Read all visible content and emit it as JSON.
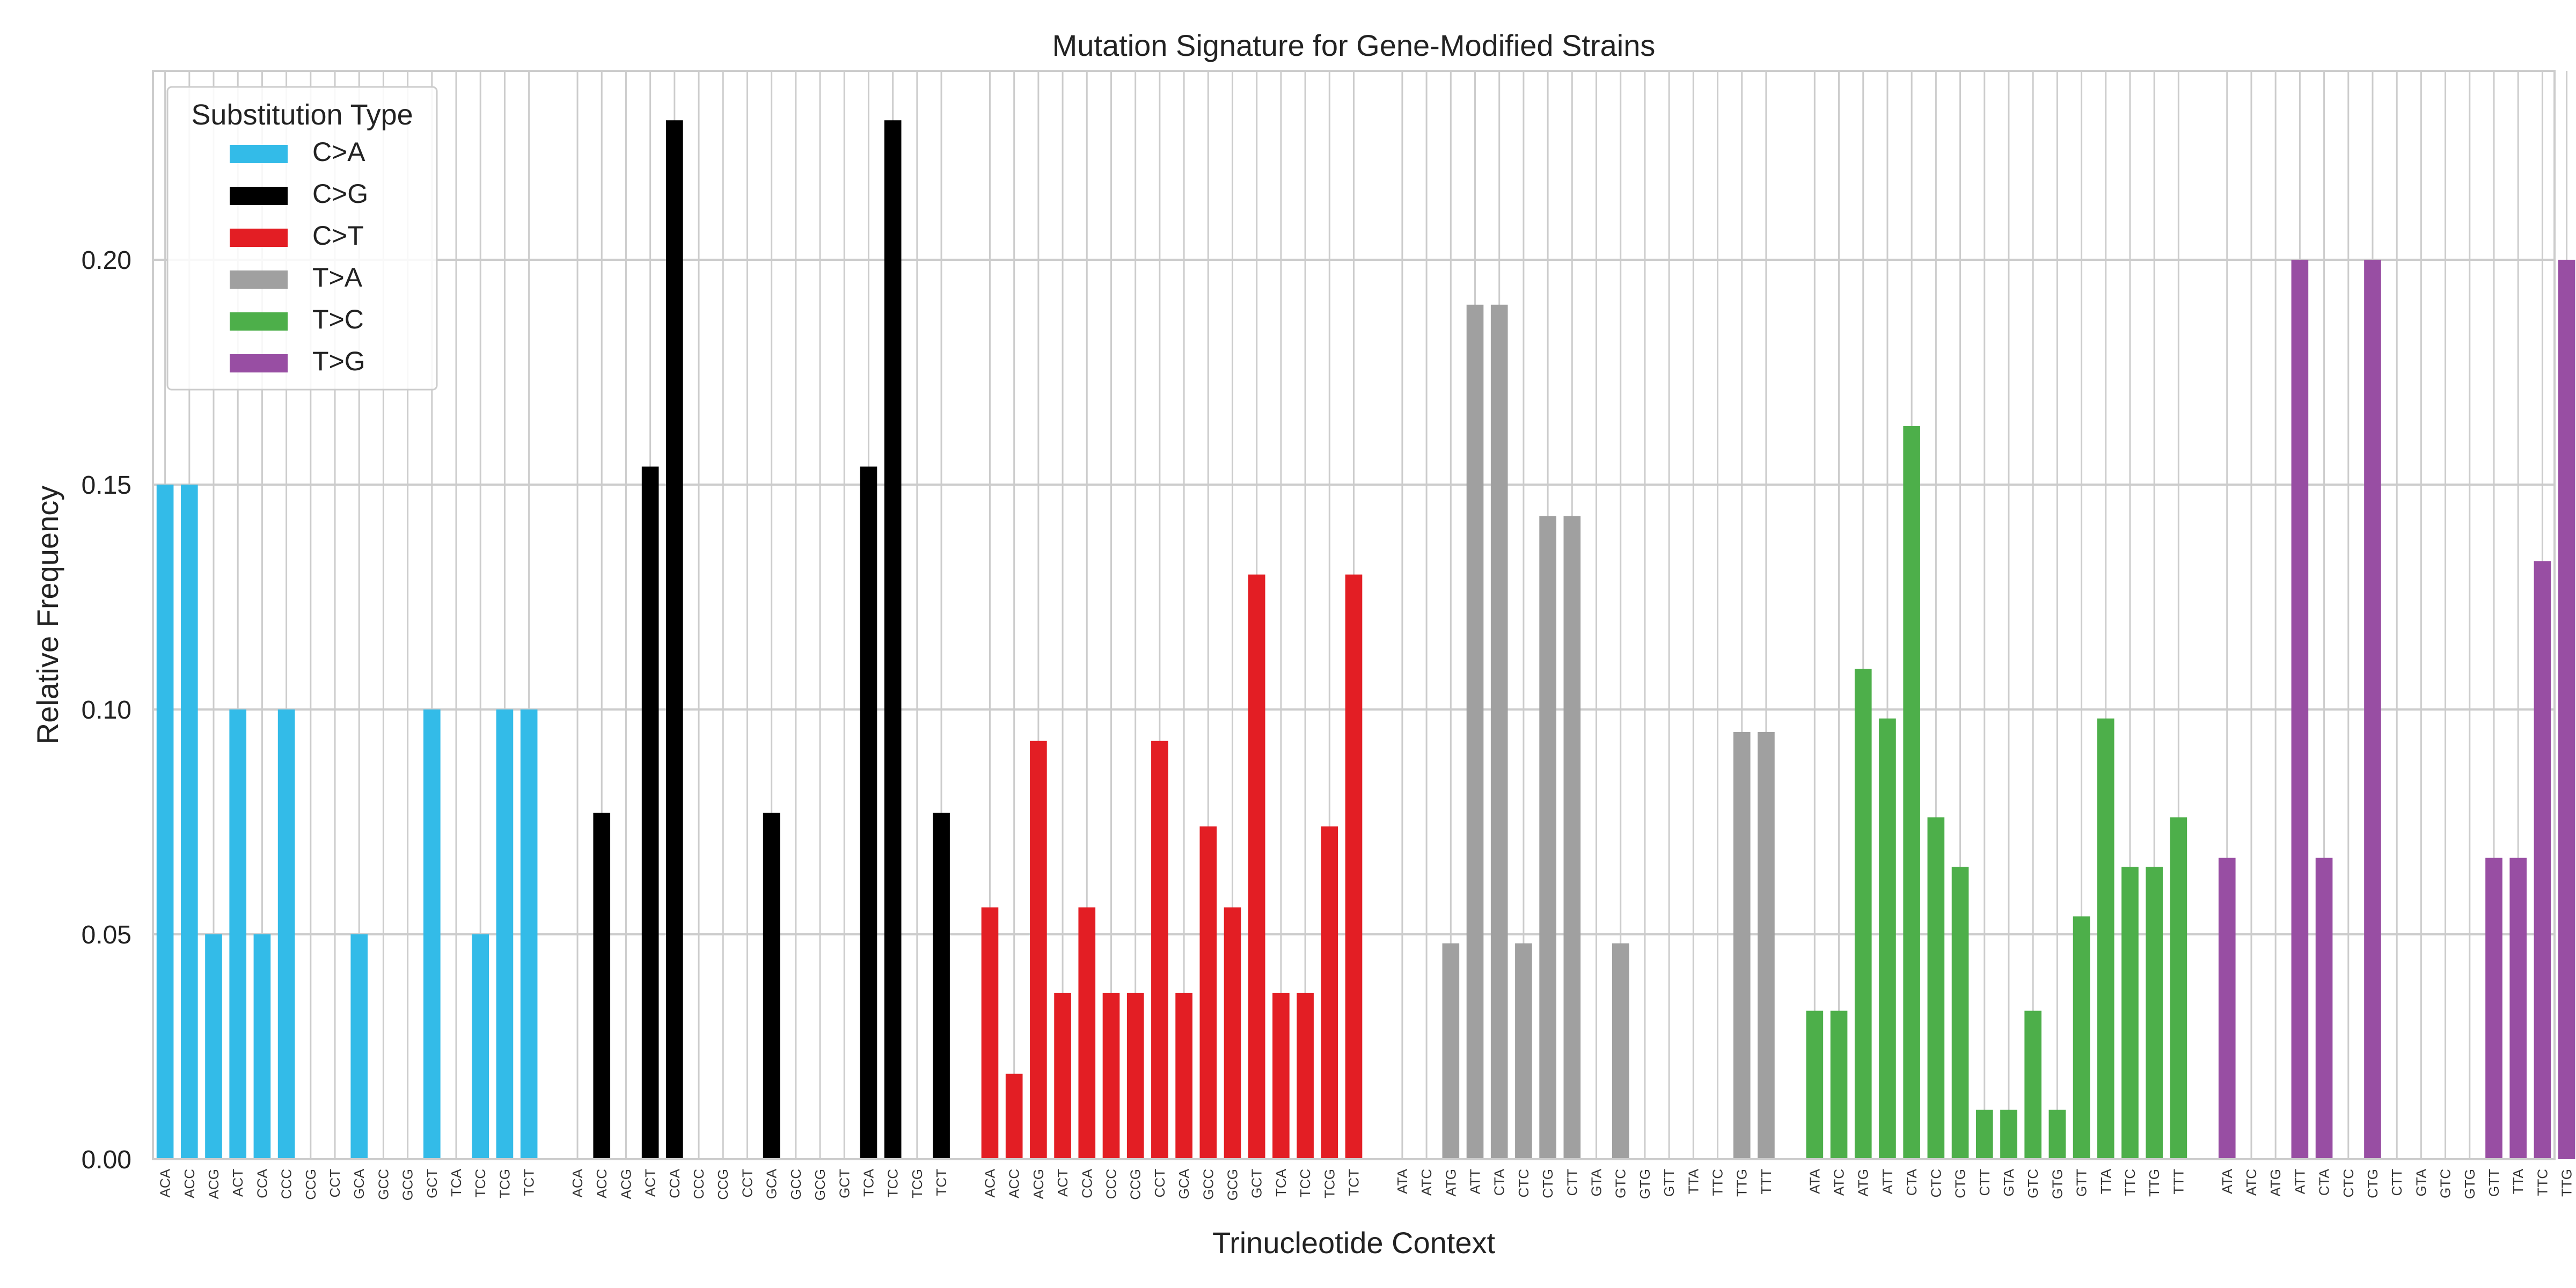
{
  "chart_data": {
    "type": "bar",
    "title": "Mutation Signature for Gene-Modified Strains",
    "xlabel": "Trinucleotide Context",
    "ylabel": "Relative Frequency",
    "ylim": [
      0,
      0.242
    ],
    "yticks": [
      "0.00",
      "0.05",
      "0.10",
      "0.15",
      "0.20"
    ],
    "grid": true,
    "legend": {
      "title": "Substitution Type",
      "position": "top-left"
    },
    "series": [
      {
        "name": "C>A",
        "color": "#33bbe8",
        "categories": [
          "ACA",
          "ACC",
          "ACG",
          "ACT",
          "CCA",
          "CCC",
          "CCG",
          "CCT",
          "GCA",
          "GCC",
          "GCG",
          "GCT",
          "TCA",
          "TCC",
          "TCG",
          "TCT"
        ],
        "values": [
          0.15,
          0.15,
          0.05,
          0.1,
          0.05,
          0.1,
          0,
          0,
          0.05,
          0,
          0,
          0.1,
          0,
          0.05,
          0.1,
          0.1
        ]
      },
      {
        "name": "C>G",
        "color": "#000000",
        "categories": [
          "ACA",
          "ACC",
          "ACG",
          "ACT",
          "CCA",
          "CCC",
          "CCG",
          "CCT",
          "GCA",
          "GCC",
          "GCG",
          "GCT",
          "TCA",
          "TCC",
          "TCG",
          "TCT"
        ],
        "values": [
          0,
          0.077,
          0,
          0.154,
          0.231,
          0,
          0,
          0,
          0.077,
          0,
          0,
          0,
          0.154,
          0.231,
          0,
          0.077
        ]
      },
      {
        "name": "C>T",
        "color": "#e31e24",
        "categories": [
          "ACA",
          "ACC",
          "ACG",
          "ACT",
          "CCA",
          "CCC",
          "CCG",
          "CCT",
          "GCA",
          "GCC",
          "GCG",
          "GCT",
          "TCA",
          "TCC",
          "TCG",
          "TCT"
        ],
        "values": [
          0.056,
          0.019,
          0.093,
          0.037,
          0.056,
          0.037,
          0.037,
          0.093,
          0.037,
          0.074,
          0.056,
          0.13,
          0.037,
          0.037,
          0.074,
          0.13
        ]
      },
      {
        "name": "T>A",
        "color": "#a0a0a0",
        "categories": [
          "ATA",
          "ATC",
          "ATG",
          "ATT",
          "CTA",
          "CTC",
          "CTG",
          "CTT",
          "GTA",
          "GTC",
          "GTG",
          "GTT",
          "TTA",
          "TTC",
          "TTG",
          "TTT"
        ],
        "values": [
          0,
          0,
          0.048,
          0.19,
          0.19,
          0.048,
          0.143,
          0.143,
          0,
          0.048,
          0,
          0,
          0,
          0,
          0.095,
          0.095
        ]
      },
      {
        "name": "T>C",
        "color": "#4daf4a",
        "categories": [
          "ATA",
          "ATC",
          "ATG",
          "ATT",
          "CTA",
          "CTC",
          "CTG",
          "CTT",
          "GTA",
          "GTC",
          "GTG",
          "GTT",
          "TTA",
          "TTC",
          "TTG",
          "TTT"
        ],
        "values": [
          0.033,
          0.033,
          0.109,
          0.098,
          0.163,
          0.076,
          0.065,
          0.011,
          0.011,
          0.033,
          0.011,
          0.054,
          0.098,
          0.065,
          0.065,
          0.076
        ]
      },
      {
        "name": "T>G",
        "color": "#984ea3",
        "categories": [
          "ATA",
          "ATC",
          "ATG",
          "ATT",
          "CTA",
          "CTC",
          "CTG",
          "CTT",
          "GTA",
          "GTC",
          "GTG",
          "GTT",
          "TTA",
          "TTC",
          "TTG",
          "TTT"
        ],
        "values": [
          0.067,
          0,
          0,
          0.2,
          0.067,
          0,
          0.2,
          0,
          0,
          0,
          0,
          0.067,
          0.067,
          0.133,
          0.2,
          0
        ]
      }
    ]
  }
}
